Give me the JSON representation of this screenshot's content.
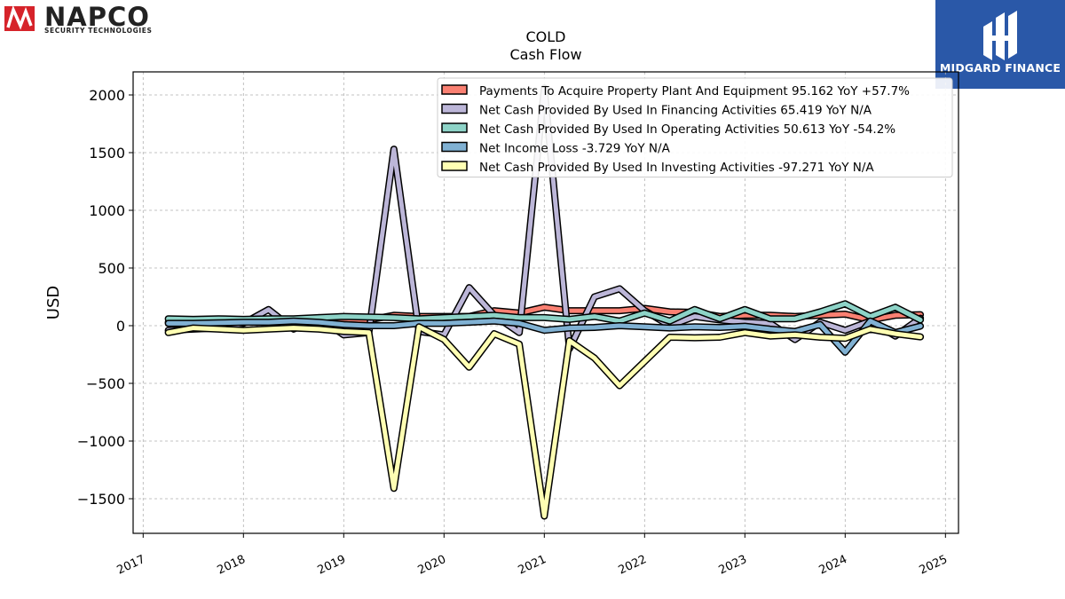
{
  "brand": {
    "napco_name": "NAPCO",
    "napco_sub": "SECURITY TECHNOLOGIES",
    "midgard_name": "MIDGARD FINANCE",
    "napco_color": "#d6232a",
    "midgard_color": "#2a58a8"
  },
  "chart_data": {
    "type": "line",
    "title": "COLD",
    "subtitle": "Cash Flow",
    "xlabel": "",
    "ylabel": "USD",
    "ylim": [
      -1800,
      2200
    ],
    "xlim": [
      2016.9,
      2025.13
    ],
    "yticks": [
      -1500,
      -1000,
      -500,
      0,
      500,
      1000,
      1500,
      2000
    ],
    "ytick_labels": [
      "−1500",
      "−1000",
      "−500",
      "0",
      "500",
      "1000",
      "1500",
      "2000"
    ],
    "xticks": [
      2017,
      2018,
      2019,
      2020,
      2021,
      2022,
      2023,
      2024,
      2025
    ],
    "xtick_labels": [
      "2017",
      "2018",
      "2019",
      "2020",
      "2021",
      "2022",
      "2023",
      "2024",
      "2025"
    ],
    "grid": true,
    "legend_position": "top-right",
    "x": [
      2017.25,
      2017.5,
      2017.75,
      2018.0,
      2018.25,
      2018.5,
      2018.75,
      2019.0,
      2019.25,
      2019.5,
      2019.75,
      2020.0,
      2020.25,
      2020.5,
      2020.75,
      2021.0,
      2021.25,
      2021.5,
      2021.75,
      2022.0,
      2022.25,
      2022.5,
      2022.75,
      2023.0,
      2023.25,
      2023.5,
      2023.75,
      2024.0,
      2024.25,
      2024.5,
      2024.75
    ],
    "series": [
      {
        "name": "Payments To Acquire Property Plant And Equipment  95.162 YoY +57.7%",
        "color": "#fa8072",
        "values": [
          30,
          30,
          30,
          30,
          40,
          40,
          60,
          60,
          50,
          90,
          80,
          80,
          80,
          130,
          110,
          160,
          130,
          130,
          130,
          150,
          120,
          115,
          80,
          90,
          90,
          80,
          90,
          100,
          50,
          90,
          95
        ]
      },
      {
        "name": "Net Cash Provided By Used In Financing Activities  65.419 YoY N/A",
        "color": "#bcb6d8",
        "values": [
          -40,
          -30,
          -20,
          20,
          140,
          -30,
          70,
          -80,
          -60,
          1530,
          -50,
          -80,
          330,
          90,
          -60,
          2060,
          -200,
          250,
          320,
          130,
          0,
          80,
          50,
          30,
          20,
          -120,
          30,
          -40,
          40,
          -90,
          65
        ]
      },
      {
        "name": "Net Cash Provided By Used In Operating Activities  50.613 YoY -54.2%",
        "color": "#8dd3c7",
        "values": [
          60,
          55,
          60,
          55,
          60,
          60,
          70,
          80,
          75,
          70,
          60,
          70,
          80,
          90,
          70,
          70,
          55,
          80,
          40,
          110,
          40,
          140,
          60,
          140,
          60,
          60,
          120,
          190,
          80,
          160,
          50
        ]
      },
      {
        "name": "Net Income Loss  -3.729 YoY N/A",
        "color": "#80b1d3",
        "values": [
          20,
          20,
          25,
          30,
          30,
          40,
          30,
          10,
          0,
          0,
          20,
          20,
          30,
          40,
          20,
          -40,
          -20,
          -15,
          0,
          -10,
          -20,
          -10,
          -15,
          -5,
          -30,
          -50,
          10,
          -230,
          40,
          -60,
          -4
        ]
      },
      {
        "name": "Net Cash Provided By Used In Investing Activities  -97.271 YoY N/A",
        "color": "#ffffb3",
        "values": [
          -60,
          -20,
          -30,
          -40,
          -30,
          -20,
          -30,
          -50,
          -60,
          -1410,
          -10,
          -120,
          -360,
          -70,
          -160,
          -1650,
          -130,
          -280,
          -520,
          -310,
          -100,
          -105,
          -100,
          -60,
          -90,
          -80,
          -100,
          -110,
          -30,
          -70,
          -97
        ]
      }
    ]
  }
}
